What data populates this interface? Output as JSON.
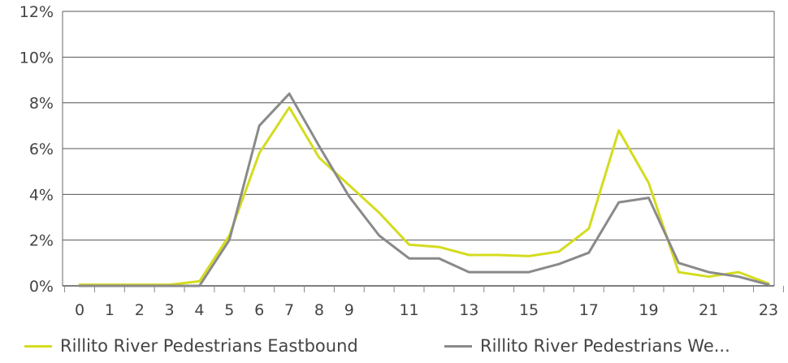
{
  "chart_data": {
    "type": "line",
    "x": [
      0,
      1,
      2,
      3,
      4,
      5,
      6,
      7,
      8,
      9,
      10,
      11,
      12,
      13,
      14,
      15,
      16,
      17,
      18,
      19,
      20,
      21,
      22,
      23
    ],
    "x_tick_labels": [
      "0",
      "1",
      "2",
      "3",
      "4",
      "5",
      "6",
      "7",
      "8",
      "9",
      "11",
      "13",
      "15",
      "17",
      "19",
      "21",
      "23"
    ],
    "y_tick_labels": [
      "0%",
      "2%",
      "4%",
      "6%",
      "8%",
      "10%",
      "12%"
    ],
    "ylim": [
      0,
      12
    ],
    "xlim": [
      0,
      23
    ],
    "grid": "horizontal",
    "legend_position": "bottom",
    "series": [
      {
        "name": "Rillito River Pedestrians Eastbound",
        "color": "#d4dc1e",
        "values": [
          0.05,
          0.05,
          0.05,
          0.05,
          0.2,
          2.2,
          5.8,
          7.8,
          5.6,
          4.4,
          3.2,
          1.8,
          1.7,
          1.35,
          1.35,
          1.3,
          1.5,
          2.5,
          6.8,
          4.5,
          0.6,
          0.4,
          0.6,
          0.1
        ]
      },
      {
        "name": "Rillito River Pedestrians We...",
        "color": "#8a8a8a",
        "values": [
          0.0,
          0.0,
          0.0,
          0.0,
          0.0,
          2.0,
          7.0,
          8.4,
          6.1,
          3.9,
          2.2,
          1.2,
          1.2,
          0.6,
          0.6,
          0.6,
          0.95,
          1.45,
          3.65,
          3.85,
          1.0,
          0.6,
          0.4,
          0.05
        ]
      }
    ]
  }
}
